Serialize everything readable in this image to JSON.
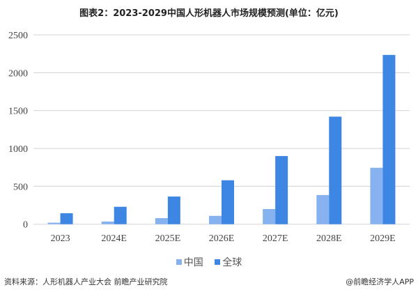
{
  "chart_data": {
    "type": "bar",
    "title": "图表2：2023-2029中国人形机器人市场规模预测(单位：亿元)",
    "categories": [
      "2023",
      "2024E",
      "2025E",
      "2026E",
      "2027E",
      "2028E",
      "2029E"
    ],
    "series": [
      {
        "name": "中国",
        "values": [
          20,
          35,
          80,
          110,
          200,
          385,
          745
        ],
        "color": "#86b3f0"
      },
      {
        "name": "全球",
        "values": [
          145,
          230,
          365,
          580,
          900,
          1420,
          2235
        ],
        "color": "#3e86e4"
      }
    ],
    "yticks": [
      0,
      500,
      1000,
      1500,
      2000,
      2500
    ],
    "ylim": [
      0,
      2500
    ],
    "grid": true,
    "legend_position": "bottom"
  },
  "footer": {
    "source": "资料来源：人形机器人产业大会 前瞻产业研究院",
    "brand": "@前瞻经济学人APP"
  },
  "watermark": "前瞻产业研究院"
}
